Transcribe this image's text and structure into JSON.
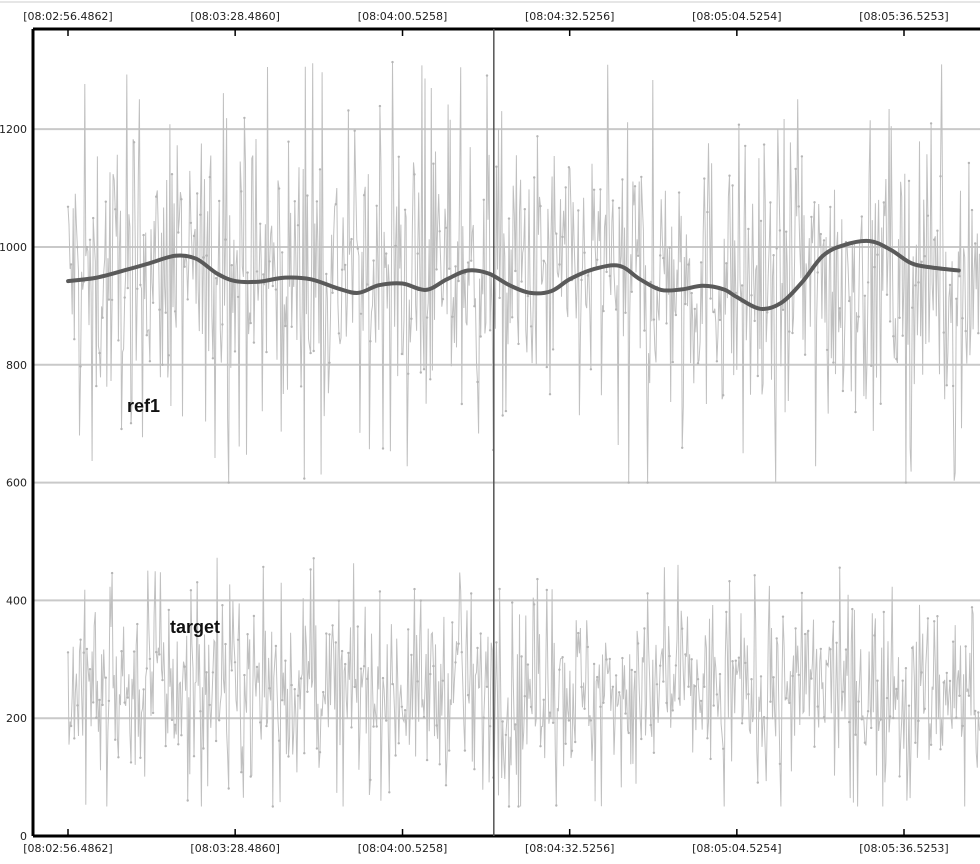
{
  "chart_data": {
    "type": "line",
    "title": "",
    "xlabel": "",
    "ylabel": "",
    "x_ticks": [
      "[08:02:56.4862]",
      "[08:03:28.4860]",
      "[08:04:00.5258]",
      "[08:04:32.5256]",
      "[08:05:04.5254]",
      "[08:05:36.5253]"
    ],
    "y_ticks": [
      0,
      200,
      400,
      600,
      800,
      1000,
      1200
    ],
    "ylim": [
      0,
      1370
    ],
    "grid": true,
    "cursor_x": "08:04:18",
    "series": [
      {
        "name": "ref1",
        "style": "noisy thin line with point markers",
        "color": "#c0c0c0",
        "mean": 950,
        "spread": [
          600,
          1330
        ]
      },
      {
        "name": "ref1",
        "style": "smoothed thick line",
        "color": "#5a5a5a",
        "x": [
          "08:02:56.5",
          "08:03:02",
          "08:03:08",
          "08:03:12",
          "08:03:17",
          "08:03:21",
          "08:03:25",
          "08:03:28.5",
          "08:03:33",
          "08:03:38",
          "08:03:43",
          "08:03:48",
          "08:03:52",
          "08:03:56",
          "08:04:00.5",
          "08:04:05",
          "08:04:09",
          "08:04:13",
          "08:04:17",
          "08:04:21",
          "08:04:25",
          "08:04:29",
          "08:04:32.5",
          "08:04:37",
          "08:04:42",
          "08:04:46",
          "08:04:50",
          "08:04:54",
          "08:04:58",
          "08:05:02",
          "08:05:04.5",
          "08:05:09",
          "08:05:13",
          "08:05:17",
          "08:05:21",
          "08:05:25",
          "08:05:30",
          "08:05:34",
          "08:05:38",
          "08:05:42",
          "08:05:47"
        ],
        "y": [
          942,
          948,
          962,
          972,
          985,
          980,
          955,
          942,
          941,
          948,
          945,
          930,
          922,
          935,
          938,
          927,
          945,
          960,
          955,
          935,
          922,
          925,
          945,
          962,
          968,
          945,
          927,
          928,
          934,
          928,
          915,
          895,
          905,
          940,
          985,
          1003,
          1010,
          995,
          972,
          965,
          960
        ]
      },
      {
        "name": "target",
        "style": "noisy thin line with point markers",
        "color": "#c0c0c0",
        "mean": 250,
        "spread": [
          50,
          510
        ]
      }
    ],
    "annotations": [
      "ref1",
      "target"
    ]
  }
}
